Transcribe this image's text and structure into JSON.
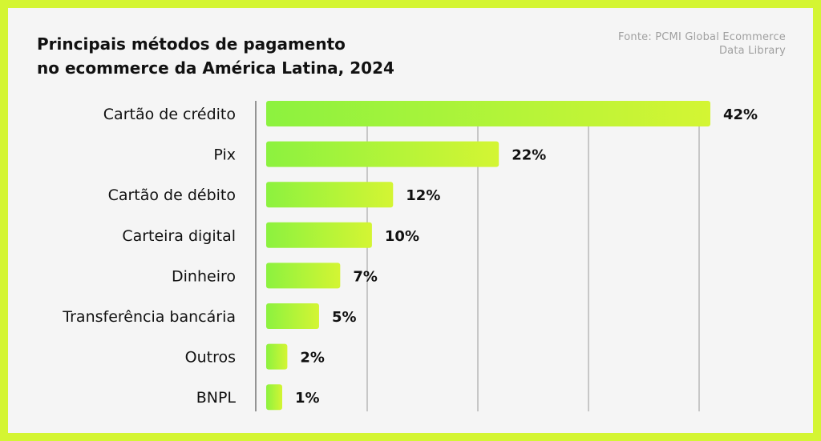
{
  "title_line1": "Principais métodos de pagamento",
  "title_line2": "no ecommerce da América Latina, 2024",
  "source_line1": "Fonte: PCMI Global Ecommerce",
  "source_line2": "Data Library",
  "colors": {
    "frame": "#d4f533",
    "background": "#f5f5f5",
    "bar_start": "#8cf23f",
    "bar_end": "#d4f533",
    "grid": "#999999"
  },
  "chart_data": {
    "type": "bar",
    "orientation": "horizontal",
    "title": "Principais métodos de pagamento no ecommerce da América Latina, 2024",
    "categories": [
      "Cartão de crédito",
      "Pix",
      "Cartão de débito",
      "Carteira digital",
      "Dinheiro",
      "Transferência bancária",
      "Outros",
      "BNPL"
    ],
    "values": [
      42,
      22,
      12,
      10,
      7,
      5,
      2,
      1
    ],
    "value_labels": [
      "42%",
      "22%",
      "12%",
      "10%",
      "7%",
      "5%",
      "2%",
      "1%"
    ],
    "unit": "%",
    "xlim": [
      0,
      42
    ],
    "grid": true,
    "legend": "none"
  }
}
